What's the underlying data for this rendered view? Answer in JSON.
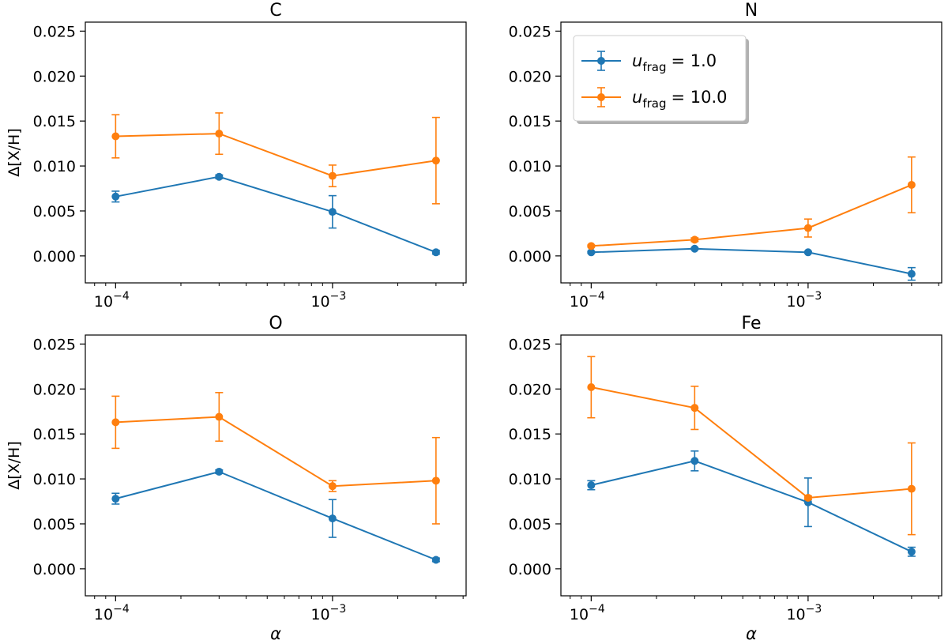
{
  "figure": {
    "series_colors": {
      "u1": "#1f77b4",
      "u10": "#ff7f0e"
    },
    "legend": {
      "entries": [
        {
          "symbol": "u",
          "subscript": "frag",
          "equals": "= 1.0",
          "series": "u1"
        },
        {
          "symbol": "u",
          "subscript": "frag",
          "equals": "= 10.0",
          "series": "u10"
        }
      ]
    }
  },
  "chart_data": [
    {
      "type": "line",
      "title": "C",
      "xlabel": "",
      "ylabel": "Δ[X/H]",
      "xscale": "log",
      "xlim": [
        7.25e-05,
        0.00413
      ],
      "ylim": [
        -0.003,
        0.026
      ],
      "x": [
        0.0001,
        0.0003,
        0.001,
        0.003
      ],
      "xticks": [
        {
          "value": 0.0001,
          "base": "10",
          "exp": "−4"
        },
        {
          "value": 0.001,
          "base": "10",
          "exp": "−3"
        }
      ],
      "yticks": [
        "0.000",
        "0.005",
        "0.010",
        "0.015",
        "0.020",
        "0.025"
      ],
      "yticks_values": [
        0,
        0.005,
        0.01,
        0.015,
        0.02,
        0.025
      ],
      "series": [
        {
          "name": "u_frag = 1.0",
          "key": "u1",
          "values": [
            0.0066,
            0.0088,
            0.0049,
            0.0004
          ],
          "errors": [
            0.0006,
            0.0002,
            0.0018,
            0.0002
          ]
        },
        {
          "name": "u_frag = 10.0",
          "key": "u10",
          "values": [
            0.0133,
            0.0136,
            0.0089,
            0.0106
          ],
          "errors": [
            0.0024,
            0.0023,
            0.0012,
            0.0048
          ]
        }
      ]
    },
    {
      "type": "line",
      "title": "N",
      "xlabel": "",
      "ylabel": "",
      "xscale": "log",
      "xlim": [
        7.25e-05,
        0.00413
      ],
      "ylim": [
        -0.003,
        0.026
      ],
      "x": [
        0.0001,
        0.0003,
        0.001,
        0.003
      ],
      "xticks": [
        {
          "value": 0.0001,
          "base": "10",
          "exp": "−4"
        },
        {
          "value": 0.001,
          "base": "10",
          "exp": "−3"
        }
      ],
      "yticks": [
        "0.000",
        "0.005",
        "0.010",
        "0.015",
        "0.020",
        "0.025"
      ],
      "yticks_values": [
        0,
        0.005,
        0.01,
        0.015,
        0.02,
        0.025
      ],
      "legend_location": "upper-left",
      "series": [
        {
          "name": "u_frag = 1.0",
          "key": "u1",
          "values": [
            0.0004,
            0.0008,
            0.0004,
            -0.002
          ],
          "errors": [
            0.0001,
            0.0001,
            0.0001,
            0.0007
          ]
        },
        {
          "name": "u_frag = 10.0",
          "key": "u10",
          "values": [
            0.0011,
            0.0018,
            0.0031,
            0.0079
          ],
          "errors": [
            0.0001,
            0.0002,
            0.001,
            0.0031
          ]
        }
      ]
    },
    {
      "type": "line",
      "title": "O",
      "xlabel": "α",
      "ylabel": "Δ[X/H]",
      "xscale": "log",
      "xlim": [
        7.25e-05,
        0.00413
      ],
      "ylim": [
        -0.003,
        0.026
      ],
      "x": [
        0.0001,
        0.0003,
        0.001,
        0.003
      ],
      "xticks": [
        {
          "value": 0.0001,
          "base": "10",
          "exp": "−4"
        },
        {
          "value": 0.001,
          "base": "10",
          "exp": "−3"
        }
      ],
      "yticks": [
        "0.000",
        "0.005",
        "0.010",
        "0.015",
        "0.020",
        "0.025"
      ],
      "yticks_values": [
        0,
        0.005,
        0.01,
        0.015,
        0.02,
        0.025
      ],
      "series": [
        {
          "name": "u_frag = 1.0",
          "key": "u1",
          "values": [
            0.0078,
            0.0108,
            0.0056,
            0.001
          ],
          "errors": [
            0.0006,
            0.0002,
            0.0021,
            0.0002
          ]
        },
        {
          "name": "u_frag = 10.0",
          "key": "u10",
          "values": [
            0.0163,
            0.0169,
            0.0092,
            0.0098
          ],
          "errors": [
            0.0029,
            0.0027,
            0.0006,
            0.0048
          ]
        }
      ]
    },
    {
      "type": "line",
      "title": "Fe",
      "xlabel": "α",
      "ylabel": "",
      "xscale": "log",
      "xlim": [
        7.25e-05,
        0.00413
      ],
      "ylim": [
        -0.003,
        0.026
      ],
      "x": [
        0.0001,
        0.0003,
        0.001,
        0.003
      ],
      "xticks": [
        {
          "value": 0.0001,
          "base": "10",
          "exp": "−4"
        },
        {
          "value": 0.001,
          "base": "10",
          "exp": "−3"
        }
      ],
      "yticks": [
        "0.000",
        "0.005",
        "0.010",
        "0.015",
        "0.020",
        "0.025"
      ],
      "yticks_values": [
        0,
        0.005,
        0.01,
        0.015,
        0.02,
        0.025
      ],
      "series": [
        {
          "name": "u_frag = 1.0",
          "key": "u1",
          "values": [
            0.0093,
            0.012,
            0.0074,
            0.0019
          ],
          "errors": [
            0.0005,
            0.0011,
            0.0027,
            0.0005
          ]
        },
        {
          "name": "u_frag = 10.0",
          "key": "u10",
          "values": [
            0.0202,
            0.0179,
            0.0079,
            0.0089
          ],
          "errors": [
            0.0034,
            0.0024,
            0.0002,
            0.0051
          ]
        }
      ]
    }
  ]
}
